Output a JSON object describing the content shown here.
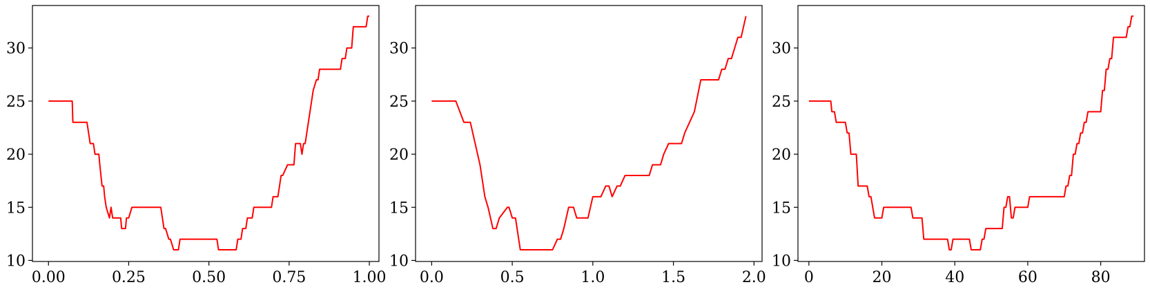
{
  "chart_data": [
    {
      "type": "line",
      "title": "",
      "xlabel": "",
      "ylabel": "",
      "xlim": [
        -0.05,
        1.03
      ],
      "ylim": [
        9.9,
        34
      ],
      "xticks": [
        0,
        0.25,
        0.5,
        0.75,
        1.0
      ],
      "xtick_labels": [
        "0.00",
        "0.25",
        "0.50",
        "0.75",
        "1.00"
      ],
      "yticks": [
        10,
        15,
        20,
        25,
        30
      ],
      "ytick_labels": [
        "10",
        "15",
        "20",
        "25",
        "30"
      ],
      "grid": false,
      "series": [
        {
          "color": "#ff0000",
          "x": [
            0.0,
            0.074,
            0.076,
            0.12,
            0.125,
            0.13,
            0.14,
            0.145,
            0.157,
            0.16,
            0.167,
            0.172,
            0.175,
            0.18,
            0.185,
            0.19,
            0.195,
            0.2,
            0.205,
            0.21,
            0.225,
            0.228,
            0.24,
            0.243,
            0.25,
            0.26,
            0.35,
            0.355,
            0.36,
            0.365,
            0.375,
            0.38,
            0.39,
            0.395,
            0.405,
            0.41,
            0.525,
            0.53,
            0.585,
            0.59,
            0.6,
            0.605,
            0.615,
            0.62,
            0.635,
            0.64,
            0.65,
            0.65,
            0.695,
            0.7,
            0.715,
            0.72,
            0.725,
            0.73,
            0.745,
            0.75,
            0.765,
            0.77,
            0.785,
            0.79,
            0.795,
            0.8,
            0.805,
            0.81,
            0.82,
            0.825,
            0.835,
            0.84,
            0.845,
            0.85,
            0.91,
            0.915,
            0.925,
            0.93,
            0.945,
            0.95,
            0.99,
            0.995,
            1.0
          ],
          "y": [
            25,
            25,
            23,
            23,
            22,
            21,
            21,
            20,
            20,
            19,
            17,
            17,
            16,
            15,
            14.5,
            14,
            15,
            14,
            14,
            14,
            14,
            13,
            13,
            14,
            14,
            15,
            15,
            14,
            13,
            13,
            12,
            12,
            11,
            11,
            11,
            12,
            12,
            11,
            11,
            12,
            12,
            13,
            13,
            14,
            14,
            15,
            15,
            15,
            15,
            16,
            16,
            17,
            18,
            18,
            19,
            19,
            19,
            21,
            21,
            20,
            21,
            21,
            22,
            23,
            25,
            26,
            27,
            27,
            28,
            28,
            28,
            29,
            29,
            30,
            30,
            32,
            32,
            33,
            33
          ]
        }
      ]
    },
    {
      "type": "line",
      "title": "",
      "xlabel": "",
      "ylabel": "",
      "xlim": [
        -0.1,
        2.05
      ],
      "ylim": [
        9.9,
        34
      ],
      "xticks": [
        0.0,
        0.5,
        1.0,
        1.5,
        2.0
      ],
      "xtick_labels": [
        "0.0",
        "0.5",
        "1.0",
        "1.5",
        "2.0"
      ],
      "yticks": [
        10,
        15,
        20,
        25,
        30
      ],
      "ytick_labels": [
        "10",
        "15",
        "20",
        "25",
        "30"
      ],
      "grid": false,
      "series": [
        {
          "color": "#ff0000",
          "x": [
            0.0,
            0.15,
            0.2,
            0.24,
            0.3,
            0.33,
            0.35,
            0.38,
            0.4,
            0.42,
            0.47,
            0.48,
            0.5,
            0.52,
            0.55,
            0.75,
            0.78,
            0.8,
            0.82,
            0.85,
            0.88,
            0.9,
            0.95,
            0.97,
            1.0,
            1.05,
            1.08,
            1.1,
            1.12,
            1.15,
            1.17,
            1.2,
            1.35,
            1.37,
            1.42,
            1.44,
            1.47,
            1.5,
            1.55,
            1.57,
            1.6,
            1.63,
            1.67,
            1.72,
            1.78,
            1.8,
            1.82,
            1.84,
            1.86,
            1.88,
            1.9,
            1.92,
            1.95
          ],
          "y": [
            25,
            25,
            23,
            23,
            19,
            16,
            15,
            13,
            13,
            14,
            15,
            15,
            14,
            14,
            11,
            11,
            12,
            12,
            13,
            15,
            15,
            14,
            14,
            14,
            16,
            16,
            17,
            17,
            16,
            17,
            17,
            18,
            18,
            19,
            19,
            20,
            21,
            21,
            21,
            22,
            23,
            24,
            27,
            27,
            27,
            28,
            28,
            29,
            29,
            30,
            31,
            31,
            33
          ]
        }
      ]
    },
    {
      "type": "line",
      "title": "",
      "xlabel": "",
      "ylabel": "",
      "xlim": [
        -3,
        92
      ],
      "ylim": [
        9.9,
        34
      ],
      "xticks": [
        0,
        20,
        40,
        60,
        80
      ],
      "xtick_labels": [
        "0",
        "20",
        "40",
        "60",
        "80"
      ],
      "yticks": [
        10,
        15,
        20,
        25,
        30
      ],
      "ytick_labels": [
        "10",
        "15",
        "20",
        "25",
        "30"
      ],
      "grid": false,
      "series": [
        {
          "color": "#ff0000",
          "x": [
            0,
            6,
            6.3,
            7,
            7.5,
            10,
            10.5,
            11,
            11.5,
            13,
            13.5,
            16,
            16.5,
            17,
            17.5,
            18,
            20,
            20.5,
            28,
            28.5,
            31,
            31.5,
            35,
            36.5,
            38,
            38.5,
            39,
            39.5,
            44,
            44.5,
            47,
            47.5,
            48,
            48.5,
            53,
            53.5,
            54,
            54.5,
            55,
            55.5,
            56,
            56.5,
            60,
            60.5,
            70,
            70.5,
            71,
            71.5,
            72,
            72.5,
            73,
            73.5,
            74,
            74.5,
            75,
            75.5,
            76,
            76.5,
            80,
            80.5,
            81,
            81.5,
            82,
            82.5,
            83,
            83.5,
            87,
            87.5,
            88,
            88.5,
            89
          ],
          "y": [
            25,
            25,
            24,
            24,
            23,
            23,
            22,
            22,
            20,
            20,
            17,
            17,
            16,
            16,
            15,
            14,
            14,
            15,
            15,
            14,
            14,
            12,
            12,
            12,
            12,
            11,
            11,
            12,
            12,
            11,
            11,
            12,
            12,
            13,
            13,
            15,
            15,
            16,
            16,
            14,
            14,
            15,
            15,
            16,
            16,
            17,
            17,
            18,
            18,
            20,
            20,
            21,
            21,
            22,
            22,
            23,
            23,
            24,
            24,
            26,
            26,
            28,
            28,
            29,
            29,
            31,
            31,
            32,
            32,
            33,
            33
          ]
        }
      ]
    }
  ]
}
